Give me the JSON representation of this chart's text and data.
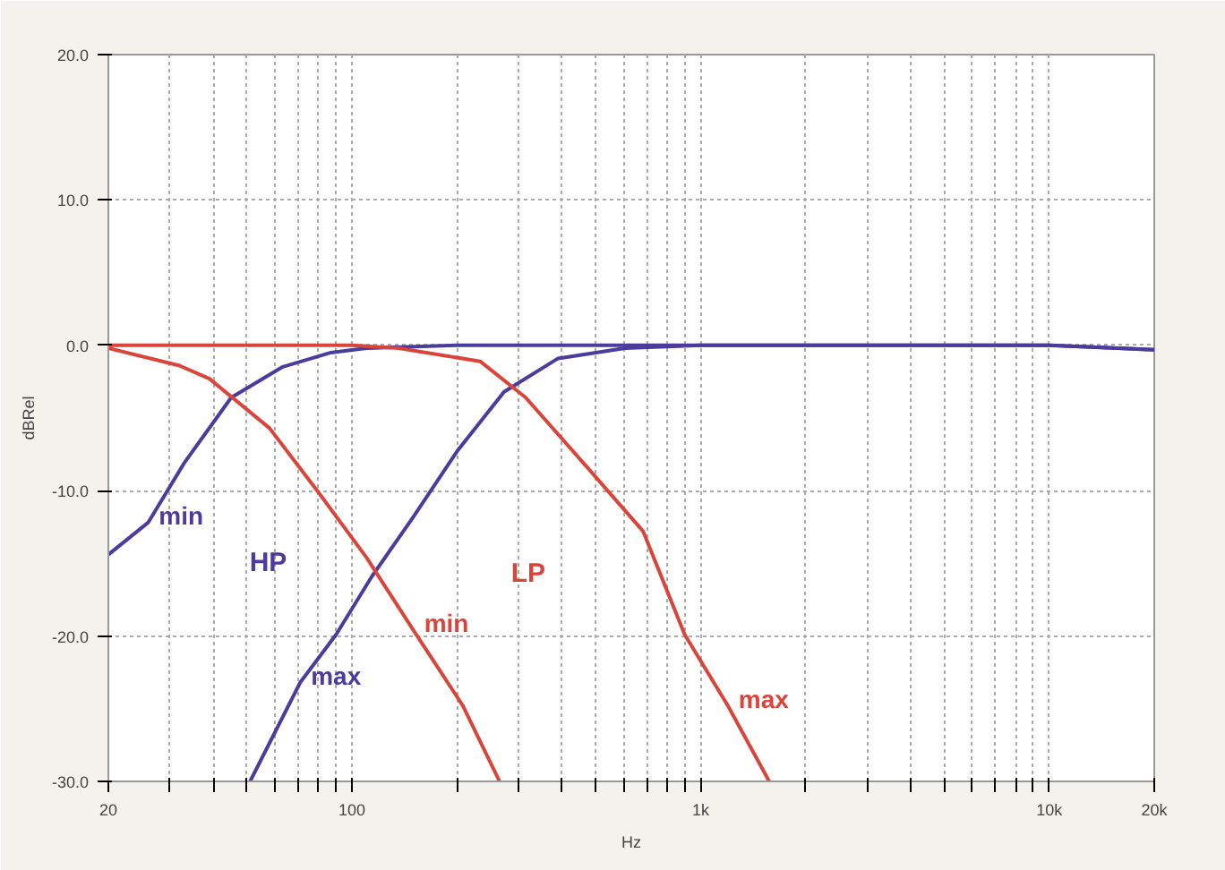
{
  "chart_data": {
    "type": "line",
    "ylabel": "dBRel",
    "xlabel": "Hz",
    "log": "x",
    "grid": true,
    "marker": "none",
    "line_style": "solid",
    "xlim": [
      20,
      20000
    ],
    "ylim": [
      -30,
      20
    ],
    "xticks": [
      20,
      {
        "value": 30,
        "label": null
      },
      {
        "value": 40,
        "label": null
      },
      {
        "value": 50,
        "label": null
      },
      {
        "value": 60,
        "label": null
      },
      {
        "value": 70,
        "label": null
      },
      {
        "value": 80,
        "label": null
      },
      {
        "value": 90,
        "label": null
      },
      100,
      {
        "value": 200,
        "label": null
      },
      {
        "value": 300,
        "label": null
      },
      {
        "value": 400,
        "label": null
      },
      {
        "value": 500,
        "label": null
      },
      {
        "value": 600,
        "label": null
      },
      {
        "value": 700,
        "label": null
      },
      {
        "value": 800,
        "label": null
      },
      {
        "value": 900,
        "label": null
      },
      {
        "value": 1000,
        "label": "1k"
      },
      {
        "value": 2000,
        "label": null
      },
      {
        "value": 3000,
        "label": null
      },
      {
        "value": 4000,
        "label": null
      },
      {
        "value": 5000,
        "label": null
      },
      {
        "value": 6000,
        "label": null
      },
      {
        "value": 7000,
        "label": null
      },
      {
        "value": 8000,
        "label": null
      },
      {
        "value": 9000,
        "label": null
      },
      {
        "value": 10000,
        "label": "10k"
      },
      {
        "value": 20000,
        "label": "20k"
      }
    ],
    "yticks": [
      {
        "value": -30,
        "label": "-30.0"
      },
      {
        "value": -20,
        "label": "-20.0"
      },
      {
        "value": -10,
        "label": "-10.0"
      },
      {
        "value": 0,
        "label": "0.0"
      },
      {
        "value": 10,
        "label": "10.0"
      },
      {
        "value": 20,
        "label": "20.0"
      }
    ],
    "annotations": [
      "HP",
      "LP"
    ],
    "series": [
      {
        "name": "min",
        "color": "#4a3c9c",
        "x": [
          20,
          26,
          33,
          45,
          63,
          87,
          110,
          200,
          1000,
          10000,
          20000
        ],
        "values": [
          -14.4,
          -12.2,
          -8.1,
          -3.6,
          -1.5,
          -0.5,
          -0.2,
          0,
          0,
          0,
          -0.3
        ]
      },
      {
        "name": "max",
        "color": "#4a3c9c",
        "x": [
          51,
          71,
          90,
          114,
          150,
          200,
          273,
          390,
          607,
          1000,
          10000,
          20000
        ],
        "values": [
          -30,
          -23.2,
          -19.9,
          -15.9,
          -11.8,
          -7.3,
          -3.2,
          -0.9,
          -0.2,
          0,
          0,
          -0.3
        ]
      },
      {
        "name": "min",
        "color": "#d9453a",
        "x": [
          20,
          32,
          39,
          58,
          80,
          110,
          150,
          208,
          265
        ],
        "values": [
          -0.2,
          -1.4,
          -2.3,
          -5.7,
          -10.1,
          -14.6,
          -19.6,
          -24.8,
          -30
        ]
      },
      {
        "name": "max",
        "color": "#d9453a",
        "x": [
          20,
          100,
          136,
          233,
          315,
          477,
          684,
          900,
          1197,
          1573
        ],
        "values": [
          0,
          0,
          -0.2,
          -1.1,
          -3.6,
          -8.5,
          -12.8,
          -19.9,
          -24.8,
          -30
        ]
      }
    ]
  }
}
